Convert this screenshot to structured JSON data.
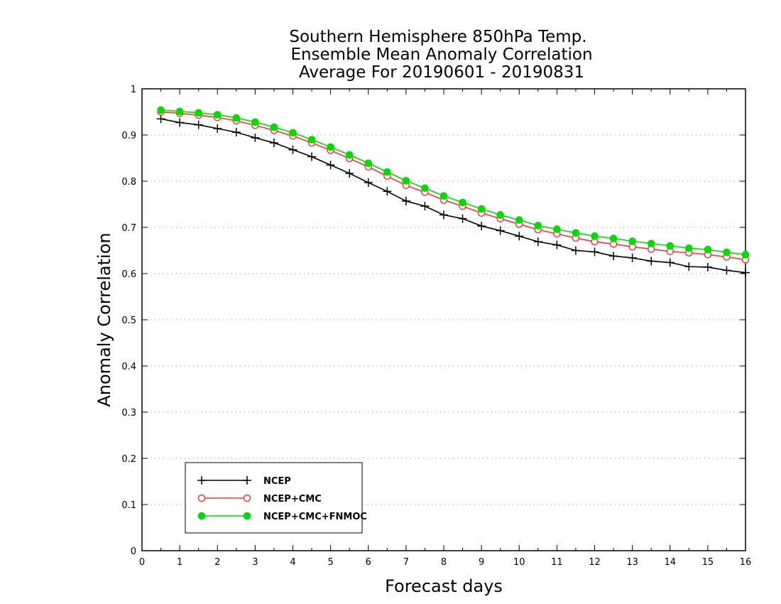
{
  "chart_data": {
    "type": "line",
    "title": [
      "Southern Hemisphere 850hPa Temp.",
      "Ensemble Mean Anomaly Correlation",
      "Average For 20190601 - 20190831"
    ],
    "xlabel": "Forecast days",
    "ylabel": "Anomaly Correlation",
    "xlim": [
      0,
      16
    ],
    "ylim": [
      0,
      1
    ],
    "xticks": [
      "0",
      "1",
      "2",
      "3",
      "4",
      "5",
      "6",
      "7",
      "8",
      "9",
      "10",
      "11",
      "12",
      "13",
      "14",
      "15",
      "16"
    ],
    "yticks": [
      "0",
      "0.1",
      "0.2",
      "0.3",
      "0.4",
      "0.5",
      "0.6",
      "0.7",
      "0.8",
      "0.9",
      "1"
    ],
    "grid": "horizontal dotted",
    "legend_position": "bottom-left",
    "x": [
      0.5,
      1,
      1.5,
      2,
      2.5,
      3,
      3.5,
      4,
      4.5,
      5,
      5.5,
      6,
      6.5,
      7,
      7.5,
      8,
      8.5,
      9,
      9.5,
      10,
      10.5,
      11,
      11.5,
      12,
      12.5,
      13,
      13.5,
      14,
      14.5,
      15,
      15.5,
      16
    ],
    "series": [
      {
        "name": "NCEP",
        "color": "#000000",
        "marker": "plus",
        "values": [
          0.935,
          0.927,
          0.922,
          0.914,
          0.906,
          0.894,
          0.883,
          0.868,
          0.853,
          0.835,
          0.817,
          0.797,
          0.778,
          0.757,
          0.746,
          0.727,
          0.719,
          0.703,
          0.693,
          0.681,
          0.669,
          0.662,
          0.65,
          0.647,
          0.638,
          0.634,
          0.627,
          0.624,
          0.615,
          0.614,
          0.607,
          0.602
        ]
      },
      {
        "name": "NCEP+CMC",
        "color": "#ff3333",
        "marker": "open-circle",
        "values": [
          0.95,
          0.947,
          0.943,
          0.938,
          0.931,
          0.921,
          0.91,
          0.898,
          0.883,
          0.867,
          0.849,
          0.831,
          0.811,
          0.791,
          0.776,
          0.759,
          0.746,
          0.731,
          0.719,
          0.707,
          0.695,
          0.686,
          0.677,
          0.669,
          0.664,
          0.658,
          0.653,
          0.648,
          0.645,
          0.641,
          0.636,
          0.63
        ]
      },
      {
        "name": "NCEP+CMC+FNMOC",
        "color": "#00dd00",
        "marker": "filled-circle",
        "values": [
          0.954,
          0.951,
          0.948,
          0.944,
          0.937,
          0.928,
          0.917,
          0.905,
          0.89,
          0.874,
          0.857,
          0.839,
          0.82,
          0.801,
          0.785,
          0.768,
          0.754,
          0.74,
          0.727,
          0.716,
          0.704,
          0.696,
          0.688,
          0.681,
          0.676,
          0.67,
          0.665,
          0.66,
          0.655,
          0.652,
          0.646,
          0.641
        ]
      }
    ]
  }
}
